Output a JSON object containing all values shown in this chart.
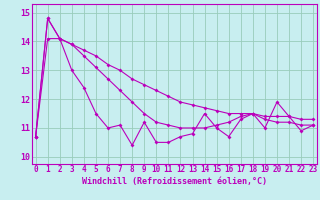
{
  "xlabel": "Windchill (Refroidissement éolien,°C)",
  "bg_color": "#c8eef0",
  "line_color": "#bb00bb",
  "grid_color": "#99ccbb",
  "xlim": [
    -0.3,
    23.3
  ],
  "ylim": [
    9.75,
    15.3
  ],
  "ytick_values": [
    10,
    11,
    12,
    13,
    14,
    15
  ],
  "ytick_labels": [
    "10",
    "11",
    "12",
    "13",
    "14",
    "15"
  ],
  "xtick_labels": [
    "0",
    "1",
    "2",
    "3",
    "4",
    "5",
    "6",
    "7",
    "8",
    "9",
    "10",
    "11",
    "12",
    "13",
    "14",
    "15",
    "16",
    "17",
    "18",
    "19",
    "20",
    "21",
    "22",
    "23"
  ],
  "series1": [
    10.7,
    14.8,
    14.1,
    13.0,
    12.4,
    11.5,
    11.0,
    11.1,
    10.4,
    11.2,
    10.5,
    10.5,
    10.7,
    10.8,
    11.5,
    11.0,
    10.7,
    11.3,
    11.5,
    11.0,
    11.9,
    11.4,
    10.9,
    11.1
  ],
  "series2": [
    10.7,
    14.8,
    14.1,
    13.9,
    13.5,
    13.1,
    12.7,
    12.3,
    11.9,
    11.5,
    11.2,
    11.1,
    11.0,
    11.0,
    11.0,
    11.1,
    11.2,
    11.4,
    11.5,
    11.3,
    11.2,
    11.2,
    11.1,
    11.1
  ],
  "series3": [
    10.7,
    14.1,
    14.1,
    13.9,
    13.7,
    13.5,
    13.2,
    13.0,
    12.7,
    12.5,
    12.3,
    12.1,
    11.9,
    11.8,
    11.7,
    11.6,
    11.5,
    11.5,
    11.5,
    11.4,
    11.4,
    11.4,
    11.3,
    11.3
  ],
  "marker_size": 2.0,
  "linewidth": 0.8,
  "xlabel_fontsize": 6.0,
  "tick_fontsize": 5.5,
  "ytick_fontsize": 6.0
}
